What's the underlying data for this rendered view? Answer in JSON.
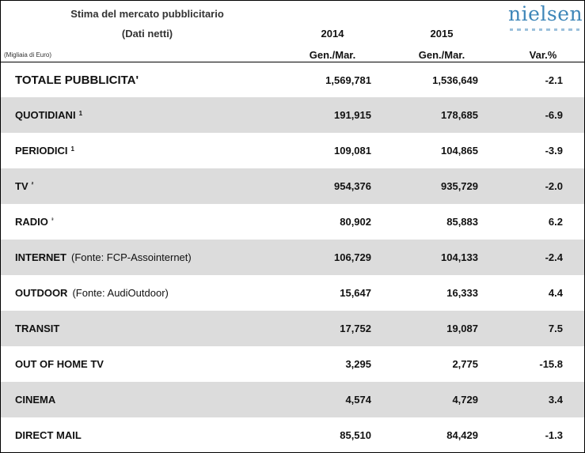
{
  "header": {
    "title": "Stima del mercato pubblicitario",
    "subtitle": "(Dati netti)",
    "unit": "(Migliaia di Euro)",
    "year_1": "2014",
    "year_2": "2015",
    "period_1": "Gen./Mar.",
    "period_2": "Gen./Mar.",
    "var_label": "Var.%",
    "logo_text": "nielsen"
  },
  "colors": {
    "border": "#000000",
    "row_shade": "#dcdcdc",
    "logo": "#3e86b8"
  },
  "rows": [
    {
      "label": "TOTALE PUBBLICITA'",
      "note": "",
      "source": "",
      "v2014": "1,569,781",
      "v2015": "1,536,649",
      "var": "-2.1"
    },
    {
      "label": "QUOTIDIANI",
      "note": "1",
      "source": "",
      "v2014": "191,915",
      "v2015": "178,685",
      "var": "-6.9"
    },
    {
      "label": "PERIODICI",
      "note": "1",
      "source": "",
      "v2014": "109,081",
      "v2015": "104,865",
      "var": "-3.9"
    },
    {
      "label": "TV",
      "note": "²",
      "source": "",
      "v2014": "954,376",
      "v2015": "935,729",
      "var": "-2.0"
    },
    {
      "label": "RADIO",
      "note": "³",
      "source": "",
      "v2014": "80,902",
      "v2015": "85,883",
      "var": "6.2"
    },
    {
      "label": "INTERNET",
      "note": "",
      "source": "(Fonte: FCP-Assointernet)",
      "v2014": "106,729",
      "v2015": "104,133",
      "var": "-2.4"
    },
    {
      "label": "OUTDOOR",
      "note": "",
      "source": "(Fonte: AudiOutdoor)",
      "v2014": "15,647",
      "v2015": "16,333",
      "var": "4.4"
    },
    {
      "label": "TRANSIT",
      "note": "",
      "source": "",
      "v2014": "17,752",
      "v2015": "19,087",
      "var": "7.5"
    },
    {
      "label": "OUT OF HOME TV",
      "note": "",
      "source": "",
      "v2014": "3,295",
      "v2015": "2,775",
      "var": "-15.8"
    },
    {
      "label": "CINEMA",
      "note": "",
      "source": "",
      "v2014": "4,574",
      "v2015": "4,729",
      "var": "3.4"
    },
    {
      "label": "DIRECT MAIL",
      "note": "",
      "source": "",
      "v2014": "85,510",
      "v2015": "84,429",
      "var": "-1.3"
    }
  ]
}
